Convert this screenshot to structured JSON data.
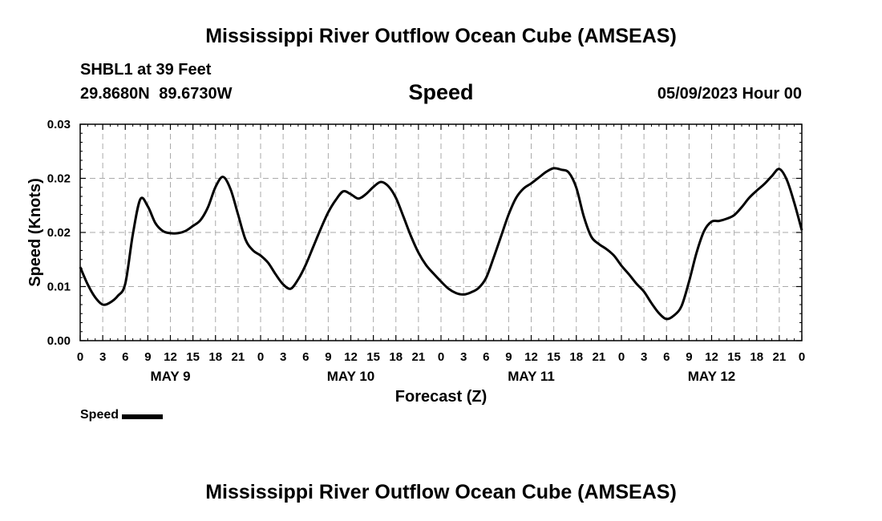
{
  "header": {
    "title": "Mississippi River Outflow Ocean Cube (AMSEAS)",
    "station": "SHBL1 at 39 Feet",
    "coords": "29.8680N  89.6730W",
    "subtitle": "Speed",
    "datetime": "05/09/2023 Hour 00"
  },
  "footer": {
    "title": "Mississippi River Outflow Ocean Cube (AMSEAS)"
  },
  "chart_data": {
    "type": "line",
    "title": "Speed",
    "xlabel": "Forecast (Z)",
    "ylabel": "Speed (Knots)",
    "ylim": [
      0,
      0.03
    ],
    "y_tick_labels": [
      "0.00",
      "0.01",
      "0.02",
      "0.02",
      "0.03"
    ],
    "x_tick_labels": [
      "0",
      "3",
      "6",
      "9",
      "12",
      "15",
      "18",
      "21",
      "0",
      "3",
      "6",
      "9",
      "12",
      "15",
      "18",
      "21",
      "0",
      "3",
      "6",
      "9",
      "12",
      "15",
      "18",
      "21",
      "0",
      "3",
      "6",
      "9",
      "12",
      "15",
      "18",
      "21",
      "0"
    ],
    "x_range_hours": [
      0,
      96
    ],
    "day_labels": [
      {
        "label": "MAY 9",
        "hour": 12
      },
      {
        "label": "MAY 10",
        "hour": 36
      },
      {
        "label": "MAY 11",
        "hour": 60
      },
      {
        "label": "MAY 12",
        "hour": 84
      }
    ],
    "grid": true,
    "legend_position": "bottom-left",
    "series": [
      {
        "name": "Speed",
        "color": "#000000",
        "x": [
          0,
          1,
          2,
          3,
          4,
          5,
          6,
          7,
          8,
          9,
          10,
          11,
          12,
          13,
          14,
          15,
          16,
          17,
          18,
          19,
          20,
          21,
          22,
          23,
          24,
          25,
          26,
          27,
          28,
          29,
          30,
          31,
          32,
          33,
          34,
          35,
          36,
          37,
          38,
          39,
          40,
          41,
          42,
          43,
          44,
          45,
          46,
          47,
          48,
          49,
          50,
          51,
          52,
          53,
          54,
          55,
          56,
          57,
          58,
          59,
          60,
          61,
          62,
          63,
          64,
          65,
          66,
          67,
          68,
          69,
          70,
          71,
          72,
          73,
          74,
          75,
          76,
          77,
          78,
          79,
          80,
          81,
          82,
          83,
          84,
          85,
          86,
          87,
          88,
          89,
          90,
          91,
          92,
          93,
          94,
          95,
          96
        ],
        "y": [
          0.0102,
          0.0078,
          0.006,
          0.005,
          0.0053,
          0.0062,
          0.0079,
          0.0147,
          0.0196,
          0.0186,
          0.0163,
          0.0152,
          0.0149,
          0.0149,
          0.0152,
          0.0159,
          0.0167,
          0.0185,
          0.0213,
          0.0227,
          0.021,
          0.0175,
          0.014,
          0.0125,
          0.0118,
          0.0108,
          0.0092,
          0.0078,
          0.0072,
          0.0085,
          0.0105,
          0.013,
          0.0155,
          0.0178,
          0.0195,
          0.0207,
          0.0203,
          0.0197,
          0.0203,
          0.0213,
          0.022,
          0.0214,
          0.0198,
          0.0172,
          0.0145,
          0.0122,
          0.0105,
          0.0093,
          0.0082,
          0.0072,
          0.0066,
          0.0064,
          0.0067,
          0.0073,
          0.0087,
          0.0115,
          0.0145,
          0.0175,
          0.0198,
          0.0211,
          0.0218,
          0.0226,
          0.0234,
          0.0239,
          0.0237,
          0.0233,
          0.0212,
          0.0172,
          0.0144,
          0.0134,
          0.0127,
          0.0118,
          0.0104,
          0.0092,
          0.0079,
          0.0068,
          0.0052,
          0.0038,
          0.003,
          0.0035,
          0.0048,
          0.0082,
          0.0122,
          0.0152,
          0.0165,
          0.0166,
          0.0169,
          0.0174,
          0.0185,
          0.0198,
          0.0208,
          0.0217,
          0.0228,
          0.0238,
          0.0223,
          0.0191,
          0.0153
        ]
      }
    ]
  }
}
